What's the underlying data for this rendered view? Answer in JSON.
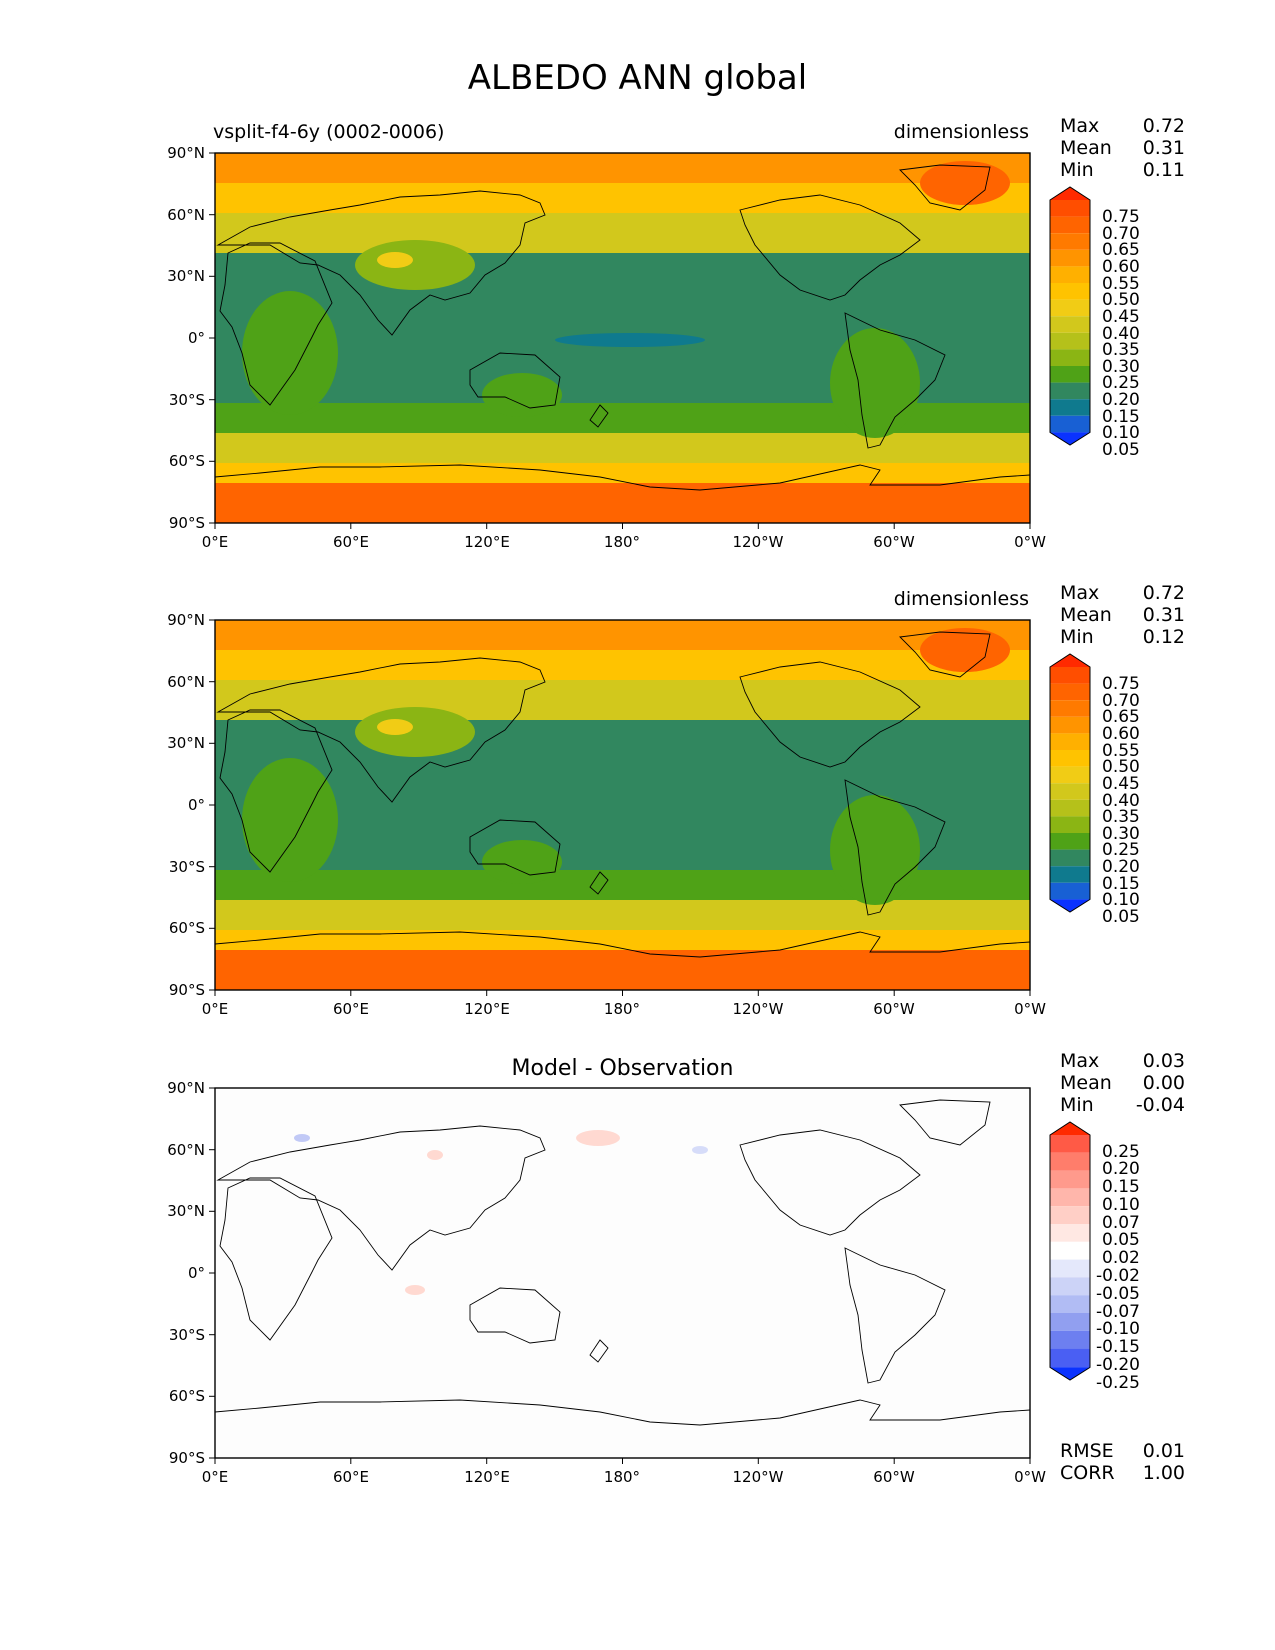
{
  "figure": {
    "title": "ALBEDO ANN global"
  },
  "axes": {
    "yticks": [
      "90°N",
      "60°N",
      "30°N",
      "0°",
      "30°S",
      "60°S",
      "90°S"
    ],
    "xticks": [
      "0°E",
      "60°E",
      "120°E",
      "180°",
      "120°W",
      "60°W",
      "0°W"
    ]
  },
  "chart_data": [
    {
      "type": "heatmap",
      "panel": "test",
      "title_left": "vsplit-f4-6y (0002-0006)",
      "title_center": "",
      "units": "dimensionless",
      "stats": [
        {
          "label": "Max",
          "value": "0.72"
        },
        {
          "label": "Mean",
          "value": "0.31"
        },
        {
          "label": "Min",
          "value": "0.11"
        }
      ],
      "colorbar": {
        "levels": [
          "0.75",
          "0.70",
          "0.65",
          "0.60",
          "0.55",
          "0.50",
          "0.45",
          "0.40",
          "0.35",
          "0.30",
          "0.25",
          "0.20",
          "0.15",
          "0.10",
          "0.05"
        ],
        "colors": [
          "#ff2a00",
          "#ff4e00",
          "#ff6400",
          "#ff7a00",
          "#ff9400",
          "#ffb000",
          "#ffc300",
          "#f1cc15",
          "#d2c81c",
          "#b5c11a",
          "#8bb514",
          "#4fa217",
          "#31875f",
          "#0f7a8e",
          "#1860d4",
          "#0a32ff"
        ]
      },
      "lat_range": [
        -90,
        90
      ],
      "lon_range": [
        0,
        360
      ]
    },
    {
      "type": "heatmap",
      "panel": "reference",
      "title_left": "",
      "title_center": "",
      "units": "dimensionless",
      "stats": [
        {
          "label": "Max",
          "value": "0.72"
        },
        {
          "label": "Mean",
          "value": "0.31"
        },
        {
          "label": "Min",
          "value": "0.12"
        }
      ],
      "colorbar": {
        "levels": [
          "0.75",
          "0.70",
          "0.65",
          "0.60",
          "0.55",
          "0.50",
          "0.45",
          "0.40",
          "0.35",
          "0.30",
          "0.25",
          "0.20",
          "0.15",
          "0.10",
          "0.05"
        ],
        "colors": [
          "#ff2a00",
          "#ff4e00",
          "#ff6400",
          "#ff7a00",
          "#ff9400",
          "#ffb000",
          "#ffc300",
          "#f1cc15",
          "#d2c81c",
          "#b5c11a",
          "#8bb514",
          "#4fa217",
          "#31875f",
          "#0f7a8e",
          "#1860d4",
          "#0a32ff"
        ]
      },
      "lat_range": [
        -90,
        90
      ],
      "lon_range": [
        0,
        360
      ]
    },
    {
      "type": "heatmap",
      "panel": "difference",
      "title_left": "",
      "title_center": "Model - Observation",
      "units": "",
      "stats": [
        {
          "label": "Max",
          "value": "0.03"
        },
        {
          "label": "Mean",
          "value": "0.00"
        },
        {
          "label": "Min",
          "value": "-0.04"
        }
      ],
      "extra_stats": [
        {
          "label": "RMSE",
          "value": "0.01"
        },
        {
          "label": "CORR",
          "value": "1.00"
        }
      ],
      "colorbar": {
        "levels": [
          "0.25",
          "0.20",
          "0.15",
          "0.10",
          "0.07",
          "0.05",
          "0.02",
          "-0.02",
          "-0.05",
          "-0.07",
          "-0.10",
          "-0.15",
          "-0.20",
          "-0.25"
        ],
        "colors": [
          "#ff2a00",
          "#ff5a46",
          "#ff7d6b",
          "#ff9a8c",
          "#ffb6ab",
          "#ffcfc6",
          "#ffe8e3",
          "#ffffff",
          "#e4e8fb",
          "#ccd3f7",
          "#b1bcf4",
          "#919ff0",
          "#6d7ff0",
          "#4a5ff3",
          "#0a32ff"
        ]
      },
      "lat_range": [
        -90,
        90
      ],
      "lon_range": [
        0,
        360
      ]
    }
  ]
}
